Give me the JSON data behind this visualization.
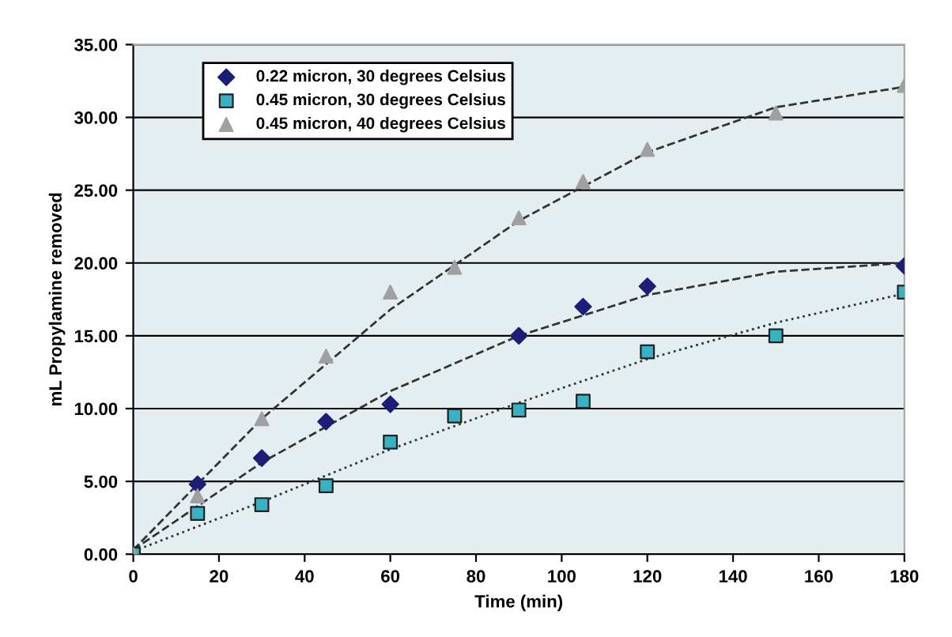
{
  "chart_data": {
    "type": "scatter",
    "xlabel": "Time (min)",
    "ylabel": "mL Propylamine removed",
    "xlim": [
      0,
      180
    ],
    "xticks": [
      0,
      20,
      40,
      60,
      80,
      100,
      120,
      140,
      160,
      180
    ],
    "ylim": [
      0,
      35
    ],
    "yticks": [
      {
        "value": 0,
        "label": "0.00"
      },
      {
        "value": 5,
        "label": "5.00"
      },
      {
        "value": 10,
        "label": "10.00"
      },
      {
        "value": 15,
        "label": "15.00"
      },
      {
        "value": 20,
        "label": "20.00"
      },
      {
        "value": 25,
        "label": "25.00"
      },
      {
        "value": 30,
        "label": "30.00"
      },
      {
        "value": 35,
        "label": "35.00"
      }
    ],
    "grid": "y",
    "legend": "top left",
    "series": [
      {
        "name": "0.22 micron, 30 degrees Celsius",
        "color": "#1c1c7a",
        "marker": "diamond",
        "x": [
          0,
          15,
          30,
          45,
          60,
          90,
          105,
          120,
          180
        ],
        "values": [
          0,
          4.8,
          6.6,
          9.1,
          10.3,
          15.0,
          17.0,
          18.4,
          19.8
        ]
      },
      {
        "name": "0.45 micron, 30 degrees Celsius",
        "color": "#33b3c4",
        "marker": "square",
        "x": [
          0,
          15,
          30,
          45,
          60,
          75,
          90,
          105,
          120,
          150,
          180
        ],
        "values": [
          0,
          2.8,
          3.4,
          4.7,
          7.7,
          9.5,
          9.9,
          10.5,
          13.9,
          15.0,
          18.0
        ]
      },
      {
        "name": "0.45 micron, 40 degrees Celsius",
        "color": "#a0a0a0",
        "marker": "triangle",
        "x": [
          0,
          15,
          30,
          45,
          60,
          75,
          90,
          105,
          120,
          150,
          180
        ],
        "values": [
          0,
          4.0,
          9.3,
          13.6,
          18.0,
          19.7,
          23.1,
          25.6,
          27.8,
          30.3,
          32.2
        ]
      },
      {
        "type": "line",
        "color": "#333333",
        "line_style": "dashed",
        "marker": "none",
        "x": [
          0,
          30,
          60,
          90,
          120,
          150,
          180
        ],
        "values": [
          0.3,
          6.3,
          11.2,
          15.0,
          17.8,
          19.4,
          20.0
        ]
      },
      {
        "type": "line",
        "color": "#333333",
        "line_style": "dotted",
        "marker": "none",
        "x": [
          0,
          30,
          60,
          90,
          120,
          150,
          180
        ],
        "values": [
          0.2,
          3.6,
          7.2,
          10.4,
          13.4,
          15.9,
          17.9
        ]
      },
      {
        "type": "line",
        "color": "#333333",
        "line_style": "dashed",
        "marker": "none",
        "x": [
          0,
          30,
          60,
          90,
          120,
          150,
          180
        ],
        "values": [
          0.3,
          9.3,
          16.8,
          22.9,
          27.6,
          30.7,
          32.1
        ]
      }
    ]
  }
}
